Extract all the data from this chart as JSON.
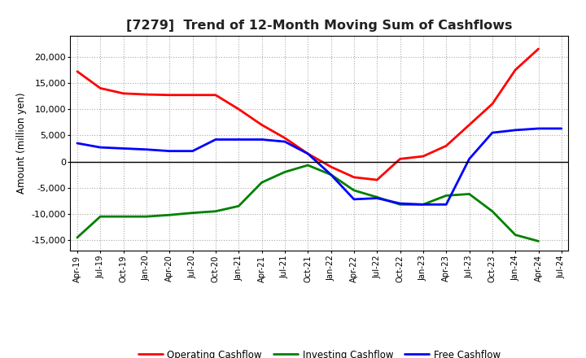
{
  "title": "[7279]  Trend of 12-Month Moving Sum of Cashflows",
  "ylabel": "Amount (million yen)",
  "ylim": [
    -17000,
    24000
  ],
  "yticks": [
    -15000,
    -10000,
    -5000,
    0,
    5000,
    10000,
    15000,
    20000
  ],
  "background_color": "#ffffff",
  "grid_color": "#aaaaaa",
  "x_labels": [
    "Apr-19",
    "Jul-19",
    "Oct-19",
    "Jan-20",
    "Apr-20",
    "Jul-20",
    "Oct-20",
    "Jan-21",
    "Apr-21",
    "Jul-21",
    "Oct-21",
    "Jan-22",
    "Apr-22",
    "Jul-22",
    "Oct-22",
    "Jan-23",
    "Apr-23",
    "Jul-23",
    "Oct-23",
    "Jan-24",
    "Apr-24",
    "Jul-24"
  ],
  "operating": [
    17200,
    14000,
    13000,
    12800,
    12700,
    12700,
    12700,
    10000,
    7000,
    4500,
    1500,
    -1000,
    -3000,
    -3500,
    500,
    1000,
    3000,
    7000,
    11000,
    17500,
    21500,
    null
  ],
  "investing": [
    -14500,
    -10500,
    -10500,
    -10500,
    -10200,
    -9800,
    -9500,
    -8500,
    -4000,
    -2000,
    -700,
    -2500,
    -5500,
    -6800,
    -8200,
    -8200,
    -6500,
    -6200,
    -9500,
    -14000,
    -15200,
    null
  ],
  "free": [
    3500,
    2700,
    2500,
    2300,
    2000,
    2000,
    4200,
    4200,
    4200,
    3800,
    1500,
    -2500,
    -7200,
    -7000,
    -8000,
    -8200,
    -8200,
    500,
    5500,
    6000,
    6300,
    6300
  ],
  "operating_color": "#ff0000",
  "investing_color": "#008000",
  "free_color": "#0000ff",
  "line_width": 2.0,
  "legend_labels": [
    "Operating Cashflow",
    "Investing Cashflow",
    "Free Cashflow"
  ]
}
